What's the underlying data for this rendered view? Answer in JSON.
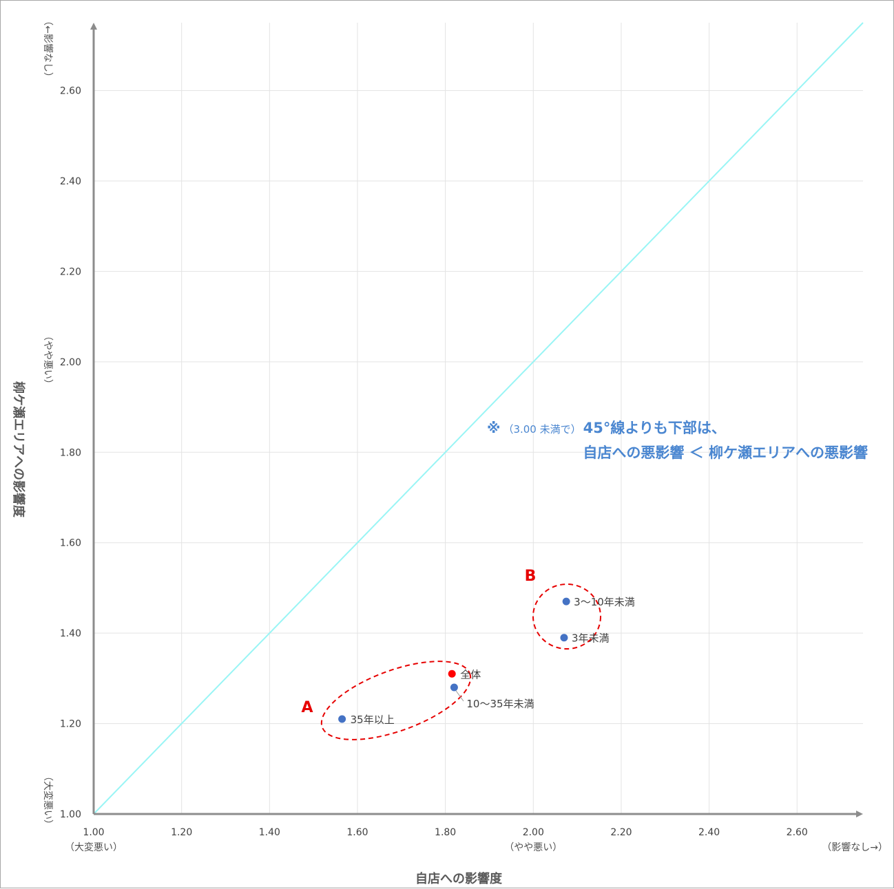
{
  "chart_data": {
    "type": "scatter",
    "xlabel": "自店への影響度",
    "ylabel": "柳ケ瀬エリアへの影響度",
    "xlim": [
      1.0,
      2.75
    ],
    "ylim": [
      1.0,
      2.75
    ],
    "x_ticks": [
      "1.00",
      "1.20",
      "1.40",
      "1.60",
      "1.80",
      "2.00",
      "2.20",
      "2.40",
      "2.60"
    ],
    "y_ticks": [
      "1.00",
      "1.20",
      "1.40",
      "1.60",
      "1.80",
      "2.00",
      "2.20",
      "2.40",
      "2.60"
    ],
    "x_qualitative": {
      "low": "（大変悪い）",
      "mid": "（やや悪い）",
      "high": "（影響なし→）"
    },
    "y_qualitative": {
      "low": "（大変悪い）",
      "mid": "（やや悪い）",
      "high": "（←影響なし）"
    },
    "grid": true,
    "reference_line": {
      "type": "diagonal_45deg",
      "color": "#99f5f5"
    },
    "points": [
      {
        "label": "35年以上",
        "x": 1.565,
        "y": 1.21,
        "color": "#4472c4"
      },
      {
        "label": "全体",
        "x": 1.815,
        "y": 1.31,
        "color": "#ff0000"
      },
      {
        "label": "10〜35年未満",
        "x": 1.82,
        "y": 1.28,
        "color": "#4472c4"
      },
      {
        "label": "3〜10年未満",
        "x": 2.075,
        "y": 1.47,
        "color": "#4472c4"
      },
      {
        "label": "3年未満",
        "x": 2.07,
        "y": 1.39,
        "color": "#4472c4"
      }
    ],
    "groups": [
      {
        "label": "A",
        "members": [
          "35年以上",
          "全体",
          "10〜35年未満"
        ]
      },
      {
        "label": "B",
        "members": [
          "3〜10年未満",
          "3年未満"
        ]
      }
    ],
    "annotation": {
      "mark": "※",
      "condition": "（3.00 未満で）",
      "line1_bold": "45°線よりも下部は、",
      "line2_bold": "自店への悪影響 ＜ 柳ケ瀬エリアへの悪影響"
    },
    "colors": {
      "axis": "#8c8c8c",
      "grid": "#e3e3e3",
      "diagonal": "#99f5f5",
      "group_outline": "#e60000",
      "annotation": "#4a86d0"
    }
  }
}
